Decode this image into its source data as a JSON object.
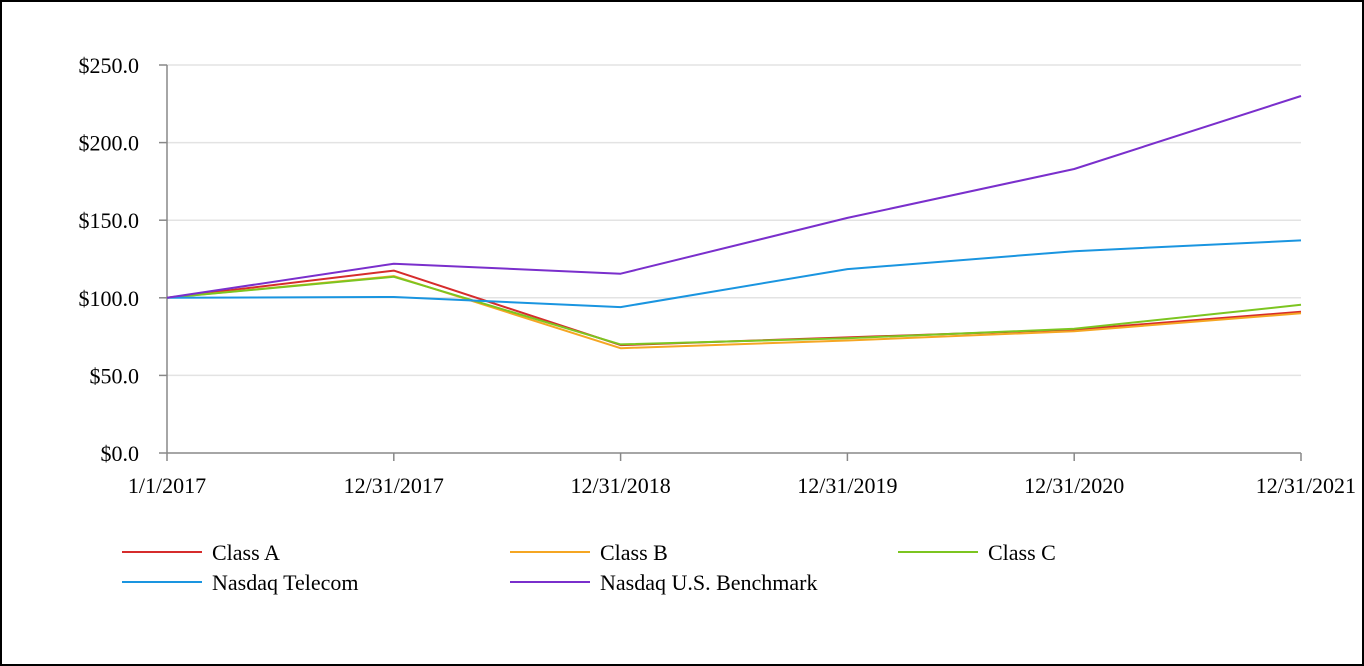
{
  "chart_data": {
    "type": "line",
    "title": "",
    "xlabel": "",
    "ylabel": "",
    "categories": [
      "1/1/2017",
      "12/31/2017",
      "12/31/2018",
      "12/31/2019",
      "12/31/2020",
      "12/31/2021"
    ],
    "ylim": [
      0,
      250
    ],
    "yticks": [
      0,
      50,
      100,
      150,
      200,
      250
    ],
    "ytick_labels": [
      "$0.0",
      "$50.0",
      "$100.0",
      "$150.0",
      "$200.0",
      "$250.0"
    ],
    "grid": "horizontal",
    "legend_position": "bottom",
    "series": [
      {
        "name": "Class A",
        "color": "#d62c2c",
        "values": [
          100,
          117.5,
          69.5,
          74.5,
          79.5,
          91
        ]
      },
      {
        "name": "Class B",
        "color": "#f5a623",
        "values": [
          100,
          114,
          67.5,
          72.5,
          78.5,
          90
        ]
      },
      {
        "name": "Class C",
        "color": "#7cc520",
        "values": [
          100,
          113.5,
          70,
          74,
          80,
          95.5
        ]
      },
      {
        "name": "Nasdaq Telecom",
        "color": "#1a95e0",
        "values": [
          100,
          100.5,
          94,
          118.5,
          130,
          137
        ]
      },
      {
        "name": "Nasdaq U.S. Benchmark",
        "color": "#7a2fcc",
        "values": [
          100,
          122,
          115.5,
          151.5,
          183,
          230
        ]
      }
    ]
  }
}
